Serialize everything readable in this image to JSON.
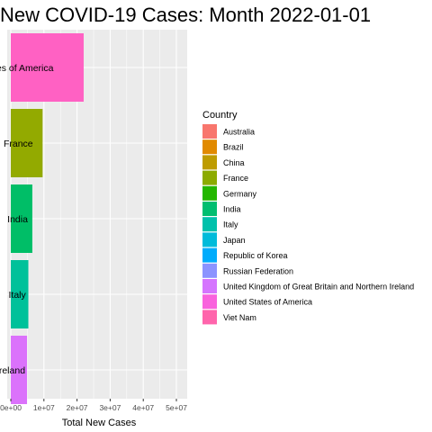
{
  "chart_data": {
    "type": "bar",
    "orientation": "horizontal",
    "title": "New COVID-19 Cases: Month 2022-01-01",
    "xlabel": "Total New Cases",
    "ylabel": "",
    "xlim": [
      0,
      52000000
    ],
    "x_ticks": [
      0,
      10000000,
      20000000,
      30000000,
      40000000,
      50000000
    ],
    "x_tick_labels": [
      "0e+00",
      "1e+07",
      "2e+07",
      "3e+07",
      "4e+07",
      "5e+07"
    ],
    "grid": true,
    "bars": [
      {
        "country": "United States of America",
        "label": "United States of America",
        "value": 22000000,
        "color": "#FF61C3"
      },
      {
        "country": "France",
        "label": "France",
        "value": 9600000,
        "color": "#93AA00"
      },
      {
        "country": "India",
        "label": "India",
        "value": 6500000,
        "color": "#00BE67"
      },
      {
        "country": "Italy",
        "label": "Italy",
        "value": 5300000,
        "color": "#00C19A"
      },
      {
        "country": "United Kingdom of Great Britain and Northern Ireland",
        "label": "United Kingdom of Great Britain and Northern Ireland",
        "value": 4900000,
        "color": "#DB72FB"
      }
    ],
    "legend": {
      "title": "Country",
      "position": "right",
      "entries": [
        {
          "label": "Australia",
          "color": "#F8766D"
        },
        {
          "label": "Brazil",
          "color": "#E18A00"
        },
        {
          "label": "China",
          "color": "#BE9C00"
        },
        {
          "label": "France",
          "color": "#8CAB00"
        },
        {
          "label": "Germany",
          "color": "#24B700"
        },
        {
          "label": "India",
          "color": "#00BE70"
        },
        {
          "label": "Italy",
          "color": "#00C1AB"
        },
        {
          "label": "Japan",
          "color": "#00BBDA"
        },
        {
          "label": "Republic of Korea",
          "color": "#00ACFC"
        },
        {
          "label": "Russian Federation",
          "color": "#8B93FF"
        },
        {
          "label": "United Kingdom of Great Britain and Northern Ireland",
          "color": "#D575FE"
        },
        {
          "label": "United States of America",
          "color": "#F962DD"
        },
        {
          "label": "Viet Nam",
          "color": "#FF65AC"
        }
      ]
    }
  }
}
